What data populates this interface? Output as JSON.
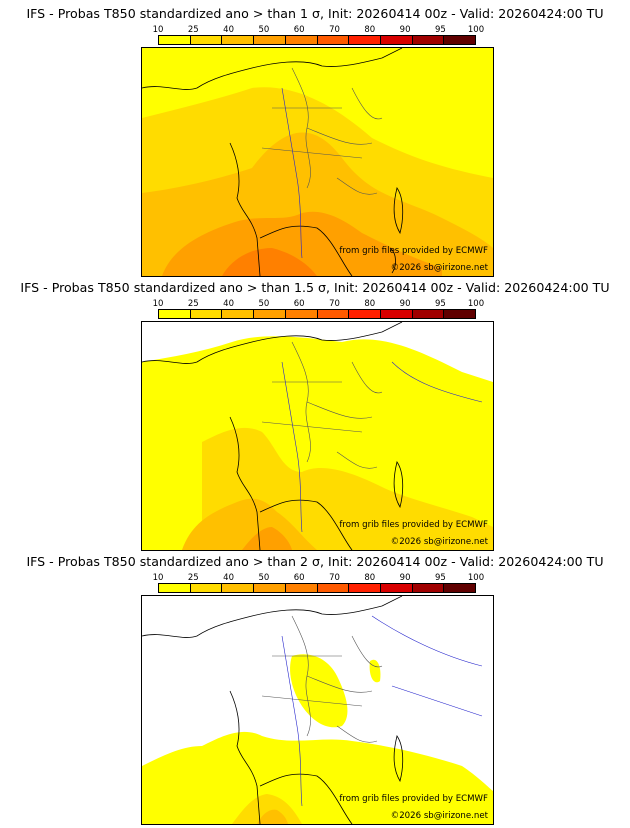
{
  "legend": {
    "ticks": [
      "10",
      "25",
      "40",
      "50",
      "60",
      "70",
      "80",
      "90",
      "95",
      "100"
    ],
    "colors": [
      "#ffff00",
      "#ffdc00",
      "#ffc000",
      "#ffa000",
      "#ff8000",
      "#ff5a00",
      "#ff2000",
      "#d80000",
      "#a00000",
      "#600000"
    ]
  },
  "colors": {
    "land_low": "#ffff00",
    "prob_25": "#ffdc00",
    "prob_40": "#ffc000",
    "prob_50": "#ffa000",
    "prob_60": "#ff8000",
    "coast": "#000000",
    "border": "#555555",
    "river": "#2222cc"
  },
  "panels": [
    {
      "title": "IFS - Probas T850  standardized ano > than 1 σ, Init: 20260414 00z - Valid: 20260424:00 TU",
      "credit_source": "from grib files provided by ECMWF",
      "credit_copyright": "©2026 sb@irizone.net"
    },
    {
      "title": "IFS - Probas T850  standardized ano > than 1.5 σ, Init: 20260414 00z - Valid: 20260424:00 TU",
      "credit_source": "from grib files provided by ECMWF",
      "credit_copyright": "©2026 sb@irizone.net"
    },
    {
      "title": "IFS - Probas T850  standardized ano > than 2 σ, Init: 20260414 00z - Valid: 20260424:00 TU",
      "credit_source": "from grib files provided by ECMWF",
      "credit_copyright": "©2026 sb@irizone.net"
    }
  ]
}
